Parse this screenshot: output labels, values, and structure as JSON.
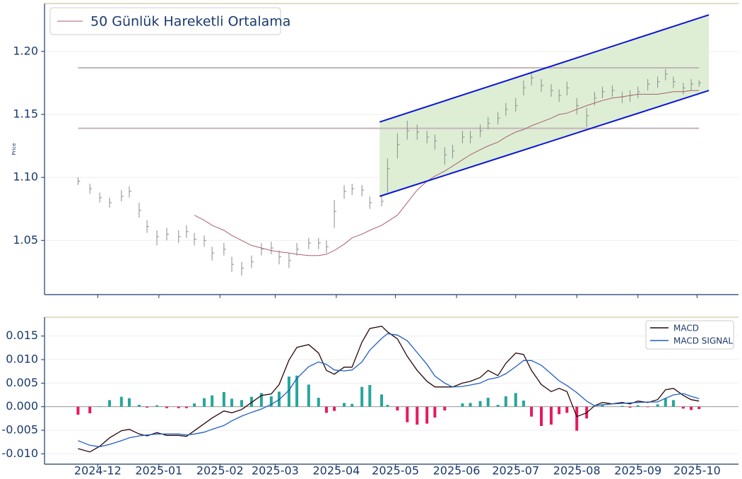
{
  "chart_data": [
    {
      "type": "ohlc",
      "ylabel": "Price",
      "x": [
        -10,
        -4,
        1,
        6,
        12,
        16,
        21,
        25,
        30,
        35,
        41,
        45,
        49,
        54,
        58,
        64,
        68,
        73,
        78,
        83,
        88,
        92,
        97,
        101,
        107,
        112,
        116,
        120,
        125,
        129,
        134,
        138,
        144,
        147,
        152,
        157,
        162,
        167,
        171,
        176,
        180,
        185,
        189,
        194,
        198,
        203,
        207,
        212,
        216,
        220,
        225,
        230,
        234,
        238,
        243,
        248,
        252,
        256,
        261,
        266,
        270,
        274,
        279,
        284,
        288,
        292,
        297,
        301,
        305
      ],
      "high": [
        1.1,
        1.095,
        1.088,
        1.084,
        1.09,
        1.093,
        1.08,
        1.066,
        1.058,
        1.06,
        1.058,
        1.062,
        1.056,
        1.054,
        1.045,
        1.048,
        1.037,
        1.033,
        1.038,
        1.048,
        1.049,
        1.042,
        1.04,
        1.048,
        1.052,
        1.052,
        1.05,
        1.082,
        1.094,
        1.095,
        1.094,
        1.085,
        1.085,
        1.115,
        1.135,
        1.145,
        1.142,
        1.137,
        1.134,
        1.124,
        1.126,
        1.137,
        1.137,
        1.142,
        1.148,
        1.152,
        1.159,
        1.163,
        1.177,
        1.184,
        1.178,
        1.174,
        1.17,
        1.176,
        1.163,
        1.155,
        1.168,
        1.172,
        1.173,
        1.168,
        1.169,
        1.172,
        1.178,
        1.18,
        1.186,
        1.18,
        1.175,
        1.178,
        1.177
      ],
      "low": [
        1.094,
        1.087,
        1.08,
        1.076,
        1.081,
        1.084,
        1.068,
        1.056,
        1.046,
        1.05,
        1.048,
        1.052,
        1.046,
        1.045,
        1.034,
        1.038,
        1.025,
        1.022,
        1.028,
        1.038,
        1.039,
        1.031,
        1.028,
        1.038,
        1.043,
        1.043,
        1.04,
        1.06,
        1.083,
        1.086,
        1.085,
        1.075,
        1.077,
        1.088,
        1.115,
        1.13,
        1.13,
        1.127,
        1.122,
        1.11,
        1.115,
        1.127,
        1.127,
        1.132,
        1.138,
        1.142,
        1.149,
        1.152,
        1.165,
        1.173,
        1.168,
        1.164,
        1.16,
        1.165,
        1.15,
        1.14,
        1.157,
        1.163,
        1.164,
        1.159,
        1.16,
        1.163,
        1.169,
        1.171,
        1.177,
        1.171,
        1.166,
        1.169,
        1.172
      ],
      "close": [
        1.097,
        1.091,
        1.084,
        1.08,
        1.085,
        1.089,
        1.074,
        1.061,
        1.053,
        1.055,
        1.053,
        1.057,
        1.051,
        1.05,
        1.04,
        1.043,
        1.031,
        1.028,
        1.033,
        1.043,
        1.044,
        1.037,
        1.034,
        1.043,
        1.048,
        1.048,
        1.045,
        1.073,
        1.089,
        1.091,
        1.09,
        1.08,
        1.081,
        1.107,
        1.126,
        1.137,
        1.136,
        1.132,
        1.129,
        1.118,
        1.121,
        1.132,
        1.132,
        1.137,
        1.143,
        1.147,
        1.154,
        1.157,
        1.171,
        1.179,
        1.173,
        1.169,
        1.165,
        1.171,
        1.157,
        1.149,
        1.163,
        1.168,
        1.169,
        1.164,
        1.165,
        1.168,
        1.174,
        1.176,
        1.182,
        1.176,
        1.171,
        1.174,
        1.175
      ],
      "bar_color": "#8c8c8c",
      "series": [
        {
          "name": "50 Günlük Hareketli Ortalama",
          "color": "#a8606e",
          "values": [
            null,
            null,
            null,
            null,
            null,
            null,
            null,
            null,
            null,
            null,
            null,
            null,
            1.07,
            1.066,
            1.062,
            1.058,
            1.054,
            1.05,
            1.046,
            1.044,
            1.042,
            1.041,
            1.04,
            1.039,
            1.038,
            1.038,
            1.039,
            1.042,
            1.047,
            1.052,
            1.055,
            1.058,
            1.062,
            1.065,
            1.07,
            1.08,
            1.09,
            1.097,
            1.101,
            1.105,
            1.109,
            1.114,
            1.118,
            1.122,
            1.125,
            1.128,
            1.132,
            1.136,
            1.138,
            1.141,
            1.144,
            1.147,
            1.15,
            1.151,
            1.154,
            1.157,
            1.159,
            1.161,
            1.163,
            1.164,
            1.165,
            1.166,
            1.166,
            1.166,
            1.167,
            1.168,
            1.168,
            1.169,
            1.169
          ]
        }
      ],
      "channel": {
        "x": [
          143,
          310
        ],
        "upper": [
          1.144,
          1.229
        ],
        "lower": [
          1.085,
          1.169
        ],
        "color": "#0a14d8",
        "fill": "#ddeed4"
      },
      "hlines": [
        1.187,
        1.139
      ],
      "hline_x": [
        -10,
        305
      ],
      "hline_color": "#c4b4ba",
      "xlim": [
        -27,
        325
      ],
      "ylim": [
        1.007,
        1.238
      ],
      "xticks": [
        0,
        31,
        62,
        90,
        121,
        151,
        182,
        212,
        243,
        274,
        304
      ],
      "yticks": [
        1.05,
        {
          "value": 1.1,
          "label": "1.10"
        },
        1.15,
        {
          "value": 1.2,
          "label": "1.20"
        }
      ],
      "grid": true,
      "legend": "upper left"
    },
    {
      "type": "macd",
      "x": [
        -10,
        -4,
        1,
        6,
        12,
        16,
        21,
        25,
        30,
        35,
        41,
        45,
        49,
        54,
        58,
        64,
        68,
        73,
        78,
        83,
        88,
        92,
        97,
        101,
        107,
        112,
        116,
        120,
        125,
        129,
        134,
        138,
        144,
        147,
        152,
        157,
        162,
        167,
        171,
        176,
        180,
        185,
        189,
        194,
        198,
        203,
        207,
        212,
        216,
        220,
        225,
        230,
        234,
        238,
        243,
        248,
        252,
        256,
        261,
        266,
        270,
        274,
        279,
        284,
        288,
        292,
        297,
        301,
        305
      ],
      "series": [
        {
          "name": "MACD",
          "color": "#2a0606",
          "values": [
            -0.0089,
            -0.0096,
            -0.0084,
            -0.0066,
            -0.0051,
            -0.0048,
            -0.0058,
            -0.0062,
            -0.0055,
            -0.0061,
            -0.0061,
            -0.0063,
            -0.0051,
            -0.0036,
            -0.0024,
            -0.0009,
            -0.0013,
            -0.0006,
            0.0009,
            0.0024,
            0.0027,
            0.0047,
            0.0099,
            0.0126,
            0.0132,
            0.0114,
            0.0077,
            0.0069,
            0.0084,
            0.0084,
            0.0137,
            0.0166,
            0.0171,
            0.0159,
            0.0144,
            0.0107,
            0.0077,
            0.0054,
            0.0042,
            0.0042,
            0.0042,
            0.005,
            0.0054,
            0.0062,
            0.0077,
            0.0066,
            0.0092,
            0.0114,
            0.0111,
            0.0077,
            0.0047,
            0.0032,
            0.0039,
            0.0032,
            -0.0021,
            -0.0013,
            0.0002,
            0.0009,
            0.0006,
            0.0009,
            0.0006,
            0.0012,
            0.0009,
            0.0015,
            0.0036,
            0.0039,
            0.0024,
            0.0015,
            0.0012
          ]
        },
        {
          "name": "MACD SIGNAL",
          "color": "#1f5fc4",
          "values": [
            -0.0072,
            -0.0082,
            -0.0085,
            -0.008,
            -0.0072,
            -0.0066,
            -0.0062,
            -0.006,
            -0.0058,
            -0.0058,
            -0.0058,
            -0.006,
            -0.0058,
            -0.0054,
            -0.0048,
            -0.004,
            -0.003,
            -0.002,
            -0.0012,
            -0.0005,
            0.0005,
            0.0015,
            0.0035,
            0.006,
            0.0085,
            0.0095,
            0.009,
            0.0078,
            0.0076,
            0.0078,
            0.0095,
            0.012,
            0.0145,
            0.0155,
            0.0152,
            0.014,
            0.0115,
            0.009,
            0.0065,
            0.005,
            0.0042,
            0.0043,
            0.0046,
            0.005,
            0.0058,
            0.0062,
            0.007,
            0.0085,
            0.0098,
            0.0098,
            0.0088,
            0.007,
            0.0055,
            0.0045,
            0.003,
            0.0012,
            0.0002,
            0.0004,
            0.0006,
            0.0007,
            0.0008,
            0.0009,
            0.001,
            0.001,
            0.0018,
            0.0025,
            0.0028,
            0.0022,
            0.0017
          ]
        }
      ],
      "histogram": {
        "color": "#26a69a",
        "negative_color": "#e8195e",
        "values": [
          -0.0017,
          -0.0014,
          0.0001,
          0.0014,
          0.0021,
          0.0018,
          0.0004,
          -0.0002,
          0.0003,
          -0.0003,
          -0.0003,
          -0.0003,
          0.0007,
          0.0018,
          0.0024,
          0.0031,
          0.0017,
          0.0014,
          0.0021,
          0.0029,
          0.0022,
          0.0032,
          0.0064,
          0.0066,
          0.0047,
          0.0019,
          -0.0013,
          -0.0009,
          0.0008,
          0.0006,
          0.0042,
          0.0046,
          0.0026,
          0.0004,
          -0.0008,
          -0.0033,
          -0.0038,
          -0.0036,
          -0.0023,
          -0.0008,
          0.0,
          0.0007,
          0.0008,
          0.0012,
          0.0019,
          0.0004,
          0.0022,
          0.0029,
          0.0013,
          -0.0021,
          -0.0041,
          -0.0038,
          -0.0016,
          -0.0013,
          -0.0051,
          -0.0025,
          0.0,
          0.0005,
          0.0,
          0.0002,
          -0.0002,
          0.0003,
          -0.0001,
          0.0005,
          0.0018,
          0.0014,
          -0.0004,
          -0.0007,
          -0.0005
        ]
      },
      "xlim": [
        -27,
        325
      ],
      "ylim": [
        -0.0122,
        0.019
      ],
      "xticks": [
        {
          "value": 0,
          "label": "2024-12"
        },
        {
          "value": 31,
          "label": "2025-01"
        },
        {
          "value": 62,
          "label": "2025-02"
        },
        {
          "value": 90,
          "label": "2025-03"
        },
        {
          "value": 121,
          "label": "2025-04"
        },
        {
          "value": 151,
          "label": "2025-05"
        },
        {
          "value": 182,
          "label": "2025-06"
        },
        {
          "value": 212,
          "label": "2025-07"
        },
        {
          "value": 243,
          "label": "2025-08"
        },
        {
          "value": 274,
          "label": "2025-09"
        },
        {
          "value": 304,
          "label": "2025-10"
        }
      ],
      "yticks": [
        {
          "value": -0.01,
          "label": "-0.010"
        },
        -0.005,
        {
          "value": 0,
          "label": "0.000"
        },
        0.005,
        {
          "value": 0.01,
          "label": "0.010"
        },
        0.015
      ],
      "grid": true,
      "legend": "upper right"
    }
  ]
}
